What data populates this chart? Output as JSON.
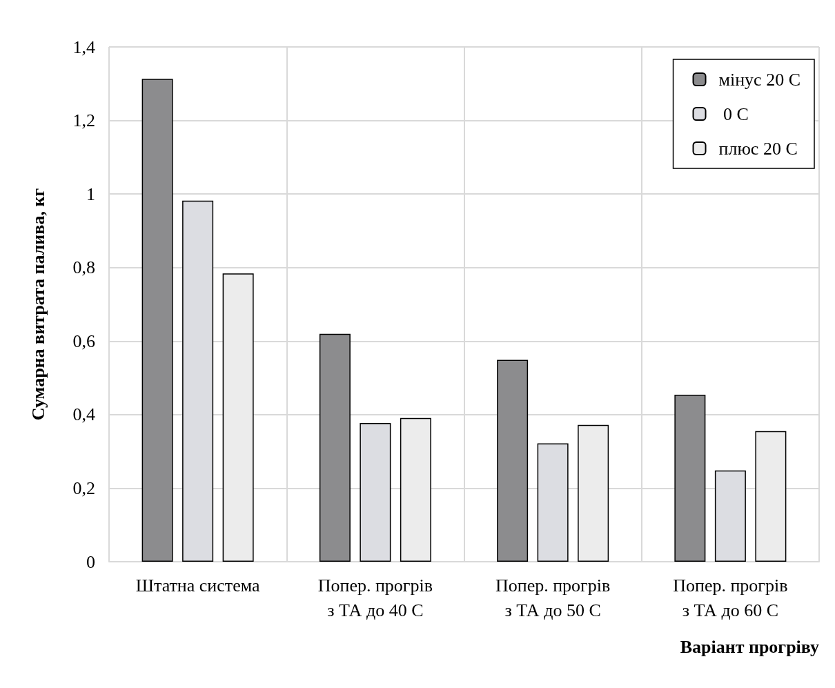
{
  "chart_data": {
    "type": "bar",
    "xlabel": "Варіант прогріву",
    "ylabel": "Сумарна витрата палива, кг",
    "categories": [
      "Штатна система",
      "Попер. прогрів\nз ТА до 40 С",
      "Попер. прогрів\nз ТА до 50 С",
      "Попер. прогрів\nз ТА до 60 С"
    ],
    "series": [
      {
        "name": "мінус 20 С",
        "color": "#8c8c8e",
        "values": [
          1.313,
          0.62,
          0.549,
          0.454
        ]
      },
      {
        "name": " 0 С",
        "color": "#dcdde2",
        "values": [
          0.982,
          0.377,
          0.322,
          0.248
        ]
      },
      {
        "name": "плюс 20 С",
        "color": "#ececec",
        "values": [
          0.784,
          0.391,
          0.372,
          0.355
        ]
      }
    ],
    "ylim": [
      0,
      1.4
    ],
    "yticks": [
      0,
      {
        "value": 0.2,
        "label": "0,2"
      },
      {
        "value": 0.4,
        "label": "0,4"
      },
      {
        "value": 0.6,
        "label": "0,6"
      },
      {
        "value": 0.8,
        "label": "0,8"
      },
      1,
      {
        "value": 1.2,
        "label": "1,2"
      },
      {
        "value": 1.4,
        "label": "1,4"
      }
    ],
    "grid": true,
    "legend": "top right"
  }
}
